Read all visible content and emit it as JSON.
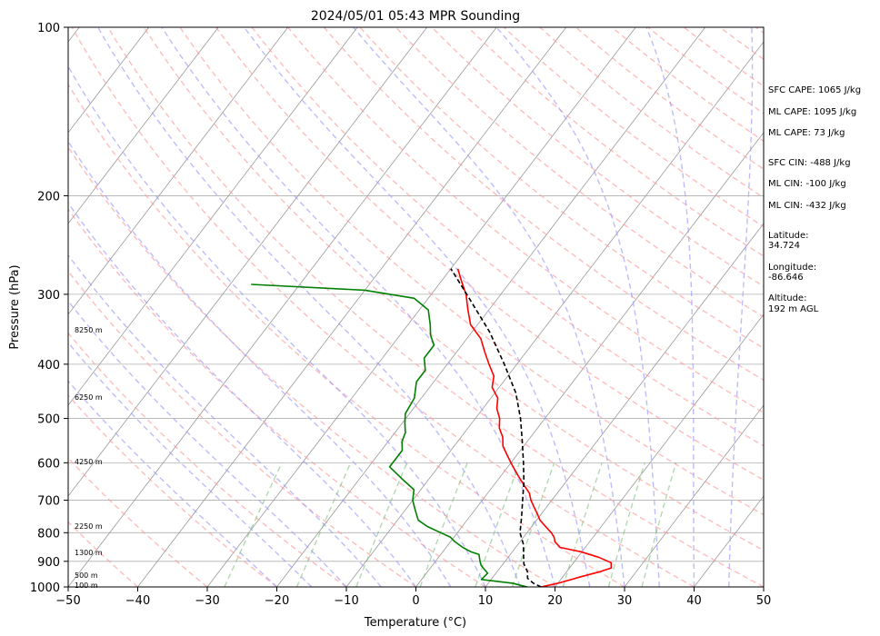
{
  "chart_data": {
    "type": "line",
    "title": "2024/05/01 05:43 MPR Sounding",
    "xlabel": "Temperature (°C)",
    "ylabel": "Pressure (hPa)",
    "xlim": [
      -50,
      50
    ],
    "ylim": [
      1000,
      100
    ],
    "y_scale": "log",
    "x_ticks": [
      -50,
      -40,
      -30,
      -20,
      -10,
      0,
      10,
      20,
      30,
      40,
      50
    ],
    "x_tick_labels": [
      "−50",
      "−40",
      "−30",
      "−20",
      "−10",
      "0",
      "10",
      "20",
      "30",
      "40",
      "50"
    ],
    "y_ticks": [
      1000,
      900,
      800,
      700,
      600,
      500,
      400,
      300,
      200,
      100
    ],
    "y_tick_labels": [
      "1000",
      "900",
      "800",
      "700",
      "600",
      "500",
      "400",
      "300",
      "200",
      "100"
    ],
    "grid": true,
    "colors": {
      "temperature": "#ff0000",
      "dewpoint": "#008000",
      "parcel": "#000000",
      "dry_adiabat": "#ff9999",
      "moist_adiabat": "#9999ff",
      "mixing_ratio": "#7fbf7f",
      "isotherm": "#999999",
      "isobar": "#b0b0b0"
    },
    "series": [
      {
        "key": "temperature",
        "p": [
          1000,
          985,
          960,
          940,
          925,
          905,
          885,
          865,
          850,
          830,
          815,
          800,
          780,
          760,
          740,
          720,
          700,
          680,
          660,
          640,
          620,
          600,
          580,
          560,
          540,
          520,
          500,
          480,
          460,
          440,
          420,
          400,
          380,
          360,
          340,
          320,
          300,
          285,
          270
        ],
        "t": [
          18,
          20,
          22.5,
          24.7,
          26,
          25.4,
          23,
          19.8,
          16.4,
          15,
          14.4,
          13.5,
          12,
          10.5,
          9.4,
          8.2,
          7,
          6,
          4.5,
          3,
          1.5,
          0,
          -1.5,
          -3,
          -4,
          -5.5,
          -6.5,
          -8,
          -9,
          -11,
          -12,
          -14,
          -16,
          -18,
          -21,
          -23,
          -25,
          -27,
          -29
        ]
      },
      {
        "key": "dewpoint",
        "p": [
          1000,
          985,
          970,
          945,
          930,
          915,
          900,
          875,
          865,
          850,
          830,
          815,
          800,
          780,
          760,
          740,
          720,
          700,
          670,
          640,
          610,
          590,
          570,
          550,
          530,
          510,
          490,
          460,
          430,
          410,
          390,
          370,
          355,
          340,
          320,
          305,
          295,
          288
        ],
        "t": [
          16,
          13.5,
          8.6,
          8.8,
          7.9,
          7,
          6.4,
          5.5,
          4,
          2.4,
          0.6,
          -0.5,
          -2.4,
          -5,
          -7,
          -8,
          -9,
          -10,
          -11,
          -14,
          -17,
          -17,
          -17,
          -18,
          -18.5,
          -19.6,
          -20.6,
          -21,
          -22.5,
          -22.5,
          -24,
          -24,
          -25.6,
          -26.8,
          -28.7,
          -32,
          -40,
          -57
        ]
      },
      {
        "key": "parcel",
        "p": [
          1000,
          985,
          965,
          940,
          910,
          875,
          840,
          800,
          750,
          700,
          650,
          600,
          550,
          500,
          450,
          400,
          350,
          300,
          270
        ],
        "t": [
          18,
          16.5,
          15.1,
          14.4,
          13,
          11.9,
          10.8,
          9,
          7.5,
          5.8,
          4,
          1.8,
          -0.7,
          -3.5,
          -7,
          -11.8,
          -17.5,
          -24.9,
          -30
        ]
      }
    ],
    "height_labels": [
      {
        "text": "100 m",
        "p": 992
      },
      {
        "text": "500 m",
        "p": 952
      },
      {
        "text": "1300 m",
        "p": 867
      },
      {
        "text": "2250 m",
        "p": 778
      },
      {
        "text": "4250 m",
        "p": 597
      },
      {
        "text": "6250 m",
        "p": 458
      },
      {
        "text": "8250 m",
        "p": 347
      }
    ],
    "annotations": [
      "SFC CAPE: 1065 J/kg",
      "ML CAPE: 1095 J/kg",
      "ML CAPE: 73 J/kg",
      "SFC CIN: -488 J/kg",
      "ML CIN: -100 J/kg",
      "ML CIN: -432 J/kg",
      "Latitude:",
      "34.724",
      "Longitude:",
      "-86.646",
      "Altitude:",
      "192 m AGL"
    ]
  }
}
